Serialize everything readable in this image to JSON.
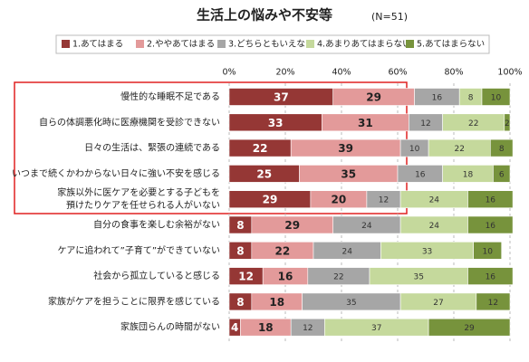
{
  "chart_data": {
    "type": "stacked-bar-horizontal",
    "title": "生活上の悩みや不安等",
    "subtitle": "(N=51)",
    "categories": [
      [
        "慢性的な睡眠不足である"
      ],
      [
        "自らの体調悪化時に医療機関を受診できない"
      ],
      [
        "日々の生活は、緊張の連続である"
      ],
      [
        "いつまで続くかわからない日々に強い不安を感じる"
      ],
      [
        "家族以外に医ケアを必要とする子どもを",
        "預けたりケアを任せられる人がいない"
      ],
      [
        "自分の食事を楽しむ余裕がない"
      ],
      [
        "ケアに追われて”子育て”ができていない"
      ],
      [
        "社会から孤立していると感じる"
      ],
      [
        "家族がケアを担うことに限界を感じている"
      ],
      [
        "家族団らんの時間がない"
      ]
    ],
    "series": [
      {
        "name": "1.あてはまる",
        "color": "#953735",
        "values": [
          37,
          33,
          22,
          25,
          29,
          8,
          8,
          12,
          8,
          4
        ]
      },
      {
        "name": "2.ややあてはまる",
        "color": "#e39a9a",
        "values": [
          29,
          31,
          39,
          35,
          20,
          29,
          22,
          16,
          18,
          18
        ]
      },
      {
        "name": "3.どちらともいえない",
        "color": "#a6a6a6",
        "values": [
          16,
          12,
          10,
          16,
          12,
          24,
          24,
          22,
          35,
          12
        ]
      },
      {
        "name": "4.あまりあてはまらない",
        "color": "#c5d99c",
        "values": [
          8,
          22,
          22,
          18,
          24,
          24,
          33,
          35,
          27,
          37
        ]
      },
      {
        "name": "5.あてはまらない",
        "color": "#77933c",
        "values": [
          10,
          2,
          8,
          6,
          16,
          16,
          10,
          16,
          12,
          29
        ]
      }
    ],
    "xlim": [
      0,
      100
    ],
    "xticks": [
      {
        "value": 0,
        "label": "0%"
      },
      {
        "value": 20,
        "label": "20%"
      },
      {
        "value": 40,
        "label": "40%"
      },
      {
        "value": 60,
        "label": "60%"
      },
      {
        "value": 80,
        "label": "80%"
      },
      {
        "value": 100,
        "label": "100%"
      }
    ],
    "grid": true
  }
}
